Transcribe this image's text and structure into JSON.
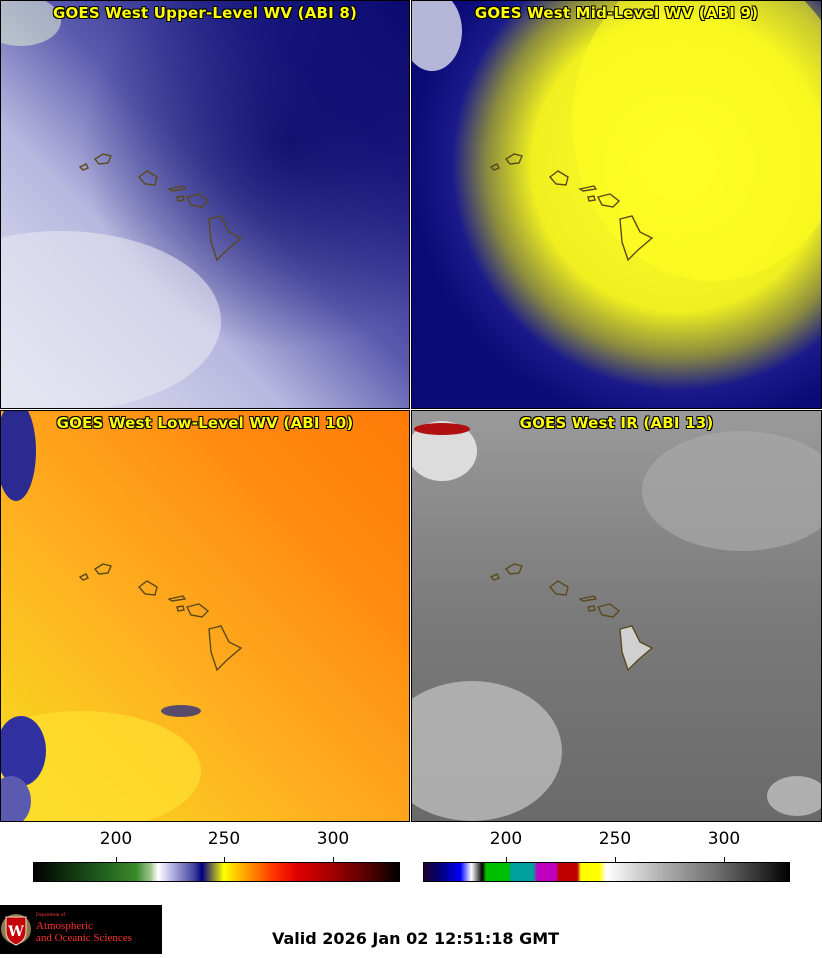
{
  "panels": {
    "upper": {
      "title": "GOES West Upper-Level WV (ABI 8)"
    },
    "mid": {
      "title": "GOES West Mid-Level WV (ABI 9)"
    },
    "low": {
      "title": "GOES West Low-Level WV (ABI 10)"
    },
    "ir": {
      "title": "GOES West IR (ABI 13)"
    }
  },
  "colorbar_wv": {
    "tick_labels": [
      "200",
      "250",
      "300"
    ]
  },
  "colorbar_ir": {
    "tick_labels": [
      "200",
      "250",
      "300"
    ]
  },
  "logo": {
    "line1": "Department of",
    "line2": "Atmospheric",
    "line3": "and Oceanic Sciences"
  },
  "footer": {
    "valid_text": "Valid 2026 Jan 02 12:51:18 GMT"
  }
}
